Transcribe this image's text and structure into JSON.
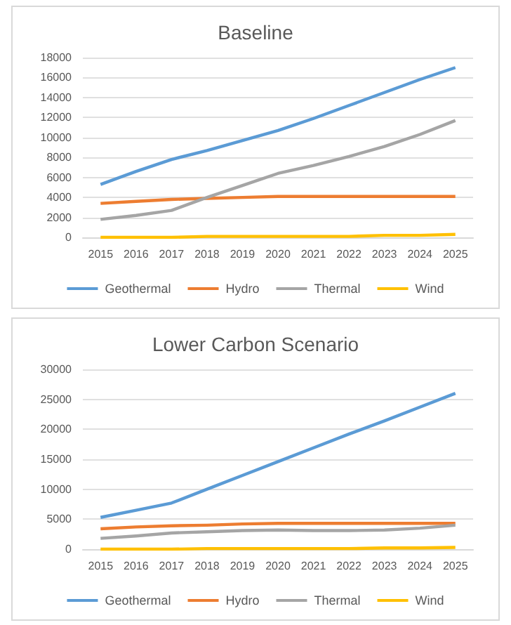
{
  "chart_data": [
    {
      "type": "line",
      "title": "Baseline",
      "categories": [
        "2015",
        "2016",
        "2017",
        "2018",
        "2019",
        "2020",
        "2021",
        "2022",
        "2023",
        "2024",
        "2025"
      ],
      "ylim": [
        0,
        18000
      ],
      "yticks": [
        0,
        2000,
        4000,
        6000,
        8000,
        10000,
        12000,
        14000,
        16000,
        18000
      ],
      "grid": "y",
      "legend": "bottom",
      "marker": "none",
      "series": [
        {
          "name": "Geothermal",
          "color": "#5b9bd5",
          "values": [
            5300,
            6600,
            7800,
            8700,
            9700,
            10700,
            11900,
            13200,
            14500,
            15800,
            17000
          ]
        },
        {
          "name": "Hydro",
          "color": "#ed7d31",
          "values": [
            3400,
            3600,
            3800,
            3900,
            4000,
            4100,
            4100,
            4100,
            4100,
            4100,
            4100
          ]
        },
        {
          "name": "Thermal",
          "color": "#a5a5a5",
          "values": [
            1800,
            2200,
            2700,
            4000,
            5200,
            6400,
            7200,
            8100,
            9100,
            10300,
            11700
          ]
        },
        {
          "name": "Wind",
          "color": "#ffc000",
          "values": [
            0,
            0,
            0,
            100,
            100,
            100,
            100,
            100,
            200,
            200,
            300
          ]
        }
      ]
    },
    {
      "type": "line",
      "title": "Lower Carbon Scenario",
      "categories": [
        "2015",
        "2016",
        "2017",
        "2018",
        "2019",
        "2020",
        "2021",
        "2022",
        "2023",
        "2024",
        "2025"
      ],
      "ylim": [
        0,
        30000
      ],
      "yticks": [
        0,
        5000,
        10000,
        15000,
        20000,
        25000,
        30000
      ],
      "grid": "y",
      "legend": "bottom",
      "marker": "none",
      "series": [
        {
          "name": "Geothermal",
          "color": "#5b9bd5",
          "values": [
            5300,
            6500,
            7700,
            10000,
            12300,
            14600,
            16900,
            19200,
            21400,
            23700,
            26000
          ]
        },
        {
          "name": "Hydro",
          "color": "#ed7d31",
          "values": [
            3400,
            3700,
            3900,
            4000,
            4200,
            4300,
            4300,
            4300,
            4300,
            4300,
            4300
          ]
        },
        {
          "name": "Thermal",
          "color": "#a5a5a5",
          "values": [
            1800,
            2200,
            2700,
            2900,
            3100,
            3200,
            3100,
            3100,
            3200,
            3500,
            4000
          ]
        },
        {
          "name": "Wind",
          "color": "#ffc000",
          "values": [
            0,
            0,
            0,
            100,
            100,
            100,
            100,
            100,
            200,
            200,
            300
          ]
        }
      ]
    }
  ]
}
